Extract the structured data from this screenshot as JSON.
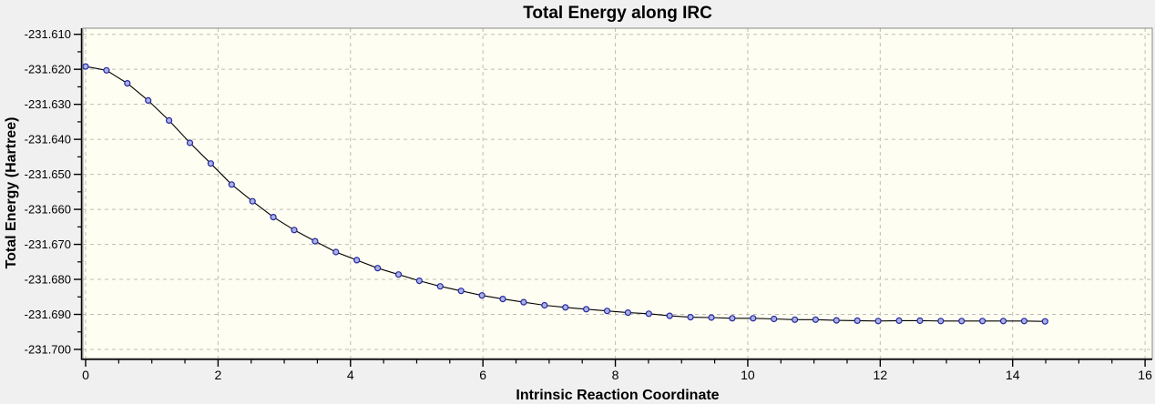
{
  "chart_data": {
    "type": "line",
    "title": "Total Energy along IRC",
    "xlabel": "Intrinsic Reaction Coordinate",
    "ylabel": "Total Energy (Hartree)",
    "xlim": [
      0,
      16
    ],
    "ylim": [
      -231.7,
      -231.61
    ],
    "x_ticks": [
      0,
      2,
      4,
      6,
      8,
      10,
      12,
      14,
      16
    ],
    "y_ticks": [
      -231.61,
      -231.62,
      -231.63,
      -231.64,
      -231.65,
      -231.66,
      -231.67,
      -231.68,
      -231.69,
      -231.7
    ],
    "x_minor_step": 0.5,
    "y_minor_step": 0.005,
    "grid": "dashed",
    "legend": "none",
    "series": [
      {
        "name": "Total Energy",
        "marker": "circle",
        "x": [
          0.0,
          0.315,
          0.63,
          0.945,
          1.26,
          1.575,
          1.89,
          2.205,
          2.52,
          2.835,
          3.15,
          3.465,
          3.78,
          4.095,
          4.41,
          4.725,
          5.04,
          5.355,
          5.67,
          5.985,
          6.3,
          6.615,
          6.93,
          7.245,
          7.56,
          7.875,
          8.19,
          8.505,
          8.82,
          9.135,
          9.45,
          9.765,
          10.08,
          10.395,
          10.71,
          11.025,
          11.34,
          11.655,
          11.97,
          12.285,
          12.6,
          12.915,
          13.23,
          13.545,
          13.86,
          14.175,
          14.49
        ],
        "y": [
          -231.6192,
          -231.6203,
          -231.624,
          -231.6289,
          -231.6346,
          -231.641,
          -231.6469,
          -231.6529,
          -231.6577,
          -231.6622,
          -231.6659,
          -231.6691,
          -231.6722,
          -231.6745,
          -231.6768,
          -231.6786,
          -231.6804,
          -231.682,
          -231.6833,
          -231.6846,
          -231.6856,
          -231.6865,
          -231.6874,
          -231.688,
          -231.6885,
          -231.689,
          -231.6895,
          -231.6898,
          -231.6904,
          -231.6908,
          -231.6909,
          -231.6911,
          -231.6911,
          -231.6913,
          -231.6915,
          -231.6915,
          -231.6917,
          -231.6918,
          -231.6919,
          -231.6918,
          -231.6918,
          -231.6919,
          -231.6919,
          -231.6919,
          -231.6919,
          -231.6919,
          -231.692
        ]
      }
    ],
    "colors": {
      "outer_background": "#f0f0f0",
      "plot_background": "#fffef2",
      "frame": "#8a8a8a",
      "grid": "#bdbdb0",
      "line": "#000000",
      "marker_fill": "#aab2e6",
      "marker_stroke": "#2626a0",
      "axis": "#000000",
      "text": "#000000"
    }
  }
}
